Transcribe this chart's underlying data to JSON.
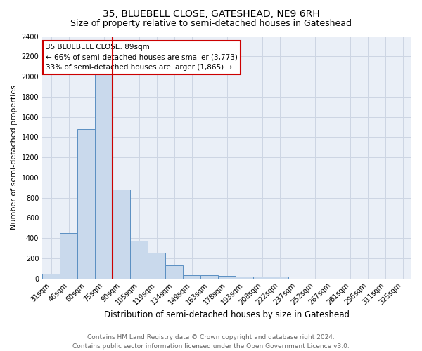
{
  "title": "35, BLUEBELL CLOSE, GATESHEAD, NE9 6RH",
  "subtitle": "Size of property relative to semi-detached houses in Gateshead",
  "xlabel": "Distribution of semi-detached houses by size in Gateshead",
  "ylabel": "Number of semi-detached properties",
  "bar_color": "#c9d9ec",
  "bar_edge_color": "#5b8fc2",
  "categories": [
    "31sqm",
    "46sqm",
    "60sqm",
    "75sqm",
    "90sqm",
    "105sqm",
    "119sqm",
    "134sqm",
    "149sqm",
    "163sqm",
    "178sqm",
    "193sqm",
    "208sqm",
    "222sqm",
    "237sqm",
    "252sqm",
    "267sqm",
    "281sqm",
    "296sqm",
    "311sqm",
    "325sqm"
  ],
  "values": [
    45,
    450,
    1480,
    2040,
    880,
    370,
    255,
    130,
    35,
    35,
    25,
    20,
    17,
    20,
    0,
    0,
    0,
    0,
    0,
    0,
    0
  ],
  "ylim": [
    0,
    2400
  ],
  "yticks": [
    0,
    200,
    400,
    600,
    800,
    1000,
    1200,
    1400,
    1600,
    1800,
    2000,
    2200,
    2400
  ],
  "vline_color": "#cc0000",
  "vline_bin_index": 4,
  "annotation_title": "35 BLUEBELL CLOSE: 89sqm",
  "annotation_line1": "← 66% of semi-detached houses are smaller (3,773)",
  "annotation_line2": "33% of semi-detached houses are larger (1,865) →",
  "annotation_box_color": "#ffffff",
  "annotation_box_edge": "#cc0000",
  "footer_line1": "Contains HM Land Registry data © Crown copyright and database right 2024.",
  "footer_line2": "Contains public sector information licensed under the Open Government Licence v3.0.",
  "grid_color": "#cdd5e3",
  "background_color": "#eaeff7",
  "title_fontsize": 10,
  "subtitle_fontsize": 9,
  "ylabel_fontsize": 8,
  "xlabel_fontsize": 8.5,
  "tick_fontsize": 7,
  "ann_fontsize": 7.5,
  "footer_fontsize": 6.5
}
